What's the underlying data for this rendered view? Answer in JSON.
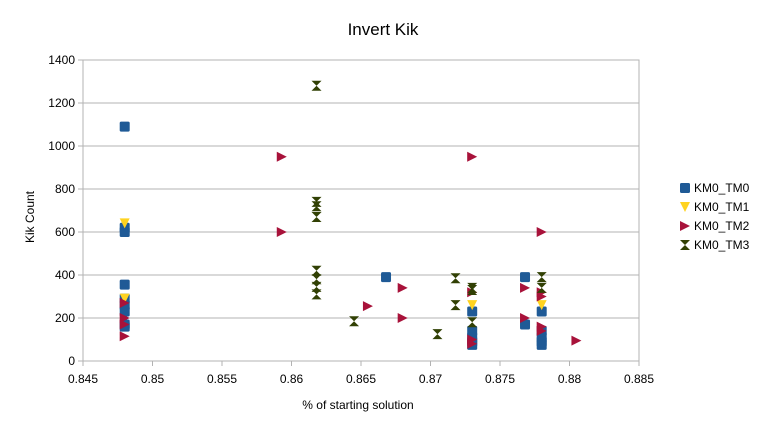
{
  "chart_data": {
    "type": "scatter",
    "title": "Invert Kik",
    "xlabel": "% of starting solution",
    "ylabel": "Kik Count",
    "xlim": [
      0.845,
      0.885
    ],
    "ylim": [
      0,
      1400
    ],
    "x_ticks": [
      "0.845",
      "0.85",
      "0.855",
      "0.86",
      "0.865",
      "0.87",
      "0.875",
      "0.88",
      "0.885"
    ],
    "y_ticks": [
      "0",
      "200",
      "400",
      "600",
      "800",
      "1000",
      "1200",
      "1400"
    ],
    "grid": "horizontal",
    "legend_position": "right",
    "series": [
      {
        "name": "KM0_TM0",
        "marker": "square",
        "color": "#1f5a96",
        "points": [
          [
            0.848,
            1090
          ],
          [
            0.848,
            620
          ],
          [
            0.848,
            600
          ],
          [
            0.848,
            355
          ],
          [
            0.848,
            290
          ],
          [
            0.848,
            260
          ],
          [
            0.848,
            230
          ],
          [
            0.848,
            170
          ],
          [
            0.848,
            160
          ],
          [
            0.8668,
            390
          ],
          [
            0.873,
            230
          ],
          [
            0.873,
            140
          ],
          [
            0.873,
            110
          ],
          [
            0.873,
            90
          ],
          [
            0.873,
            75
          ],
          [
            0.8768,
            390
          ],
          [
            0.8768,
            170
          ],
          [
            0.878,
            230
          ],
          [
            0.878,
            140
          ],
          [
            0.878,
            110
          ],
          [
            0.878,
            90
          ],
          [
            0.878,
            75
          ]
        ]
      },
      {
        "name": "KM0_TM1",
        "marker": "triangle-down",
        "color": "#ffd320",
        "points": [
          [
            0.848,
            640
          ],
          [
            0.848,
            290
          ],
          [
            0.873,
            260
          ],
          [
            0.878,
            260
          ]
        ]
      },
      {
        "name": "KM0_TM2",
        "marker": "triangle-right",
        "color": "#a8123a",
        "points": [
          [
            0.848,
            270
          ],
          [
            0.848,
            200
          ],
          [
            0.848,
            170
          ],
          [
            0.848,
            115
          ],
          [
            0.8593,
            950
          ],
          [
            0.8593,
            600
          ],
          [
            0.8655,
            255
          ],
          [
            0.868,
            340
          ],
          [
            0.868,
            200
          ],
          [
            0.873,
            950
          ],
          [
            0.873,
            320
          ],
          [
            0.873,
            100
          ],
          [
            0.873,
            80
          ],
          [
            0.8768,
            340
          ],
          [
            0.8768,
            200
          ],
          [
            0.878,
            600
          ],
          [
            0.878,
            320
          ],
          [
            0.878,
            300
          ],
          [
            0.878,
            160
          ],
          [
            0.878,
            140
          ],
          [
            0.8805,
            95
          ]
        ]
      },
      {
        "name": "KM0_TM3",
        "marker": "bowtie",
        "color": "#314004",
        "points": [
          [
            0.8618,
            1280
          ],
          [
            0.8618,
            740
          ],
          [
            0.8618,
            720
          ],
          [
            0.8618,
            670
          ],
          [
            0.8618,
            420
          ],
          [
            0.8618,
            380
          ],
          [
            0.8618,
            345
          ],
          [
            0.8618,
            310
          ],
          [
            0.8645,
            185
          ],
          [
            0.8705,
            125
          ],
          [
            0.8718,
            385
          ],
          [
            0.8718,
            260
          ],
          [
            0.873,
            340
          ],
          [
            0.873,
            330
          ],
          [
            0.873,
            180
          ],
          [
            0.878,
            390
          ],
          [
            0.878,
            340
          ]
        ]
      }
    ]
  }
}
